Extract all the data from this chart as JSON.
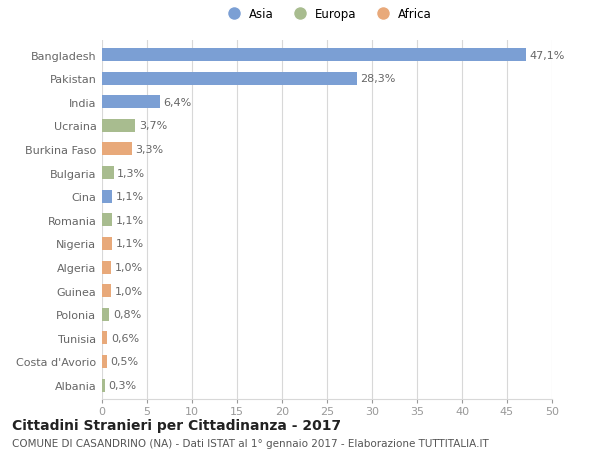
{
  "countries": [
    "Bangladesh",
    "Pakistan",
    "India",
    "Ucraina",
    "Burkina Faso",
    "Bulgaria",
    "Cina",
    "Romania",
    "Nigeria",
    "Algeria",
    "Guinea",
    "Polonia",
    "Tunisia",
    "Costa d'Avorio",
    "Albania"
  ],
  "values": [
    47.1,
    28.3,
    6.4,
    3.7,
    3.3,
    1.3,
    1.1,
    1.1,
    1.1,
    1.0,
    1.0,
    0.8,
    0.6,
    0.5,
    0.3
  ],
  "labels": [
    "47,1%",
    "28,3%",
    "6,4%",
    "3,7%",
    "3,3%",
    "1,3%",
    "1,1%",
    "1,1%",
    "1,1%",
    "1,0%",
    "1,0%",
    "0,8%",
    "0,6%",
    "0,5%",
    "0,3%"
  ],
  "continents": [
    "Asia",
    "Asia",
    "Asia",
    "Europa",
    "Africa",
    "Europa",
    "Asia",
    "Europa",
    "Africa",
    "Africa",
    "Africa",
    "Europa",
    "Africa",
    "Africa",
    "Europa"
  ],
  "colors": {
    "Asia": "#7b9fd4",
    "Europa": "#a8bc8f",
    "Africa": "#e8a97a"
  },
  "legend_labels": [
    "Asia",
    "Europa",
    "Africa"
  ],
  "legend_colors": [
    "#7b9fd4",
    "#a8bc8f",
    "#e8a97a"
  ],
  "xlim": [
    0,
    50
  ],
  "xticks": [
    0,
    5,
    10,
    15,
    20,
    25,
    30,
    35,
    40,
    45,
    50
  ],
  "title": "Cittadini Stranieri per Cittadinanza - 2017",
  "subtitle": "COMUNE DI CASANDRINO (NA) - Dati ISTAT al 1° gennaio 2017 - Elaborazione TUTTITALIA.IT",
  "background_color": "#ffffff",
  "grid_color": "#d8d8d8",
  "bar_height": 0.55,
  "label_fontsize": 8,
  "tick_fontsize": 8,
  "title_fontsize": 10,
  "subtitle_fontsize": 7.5
}
